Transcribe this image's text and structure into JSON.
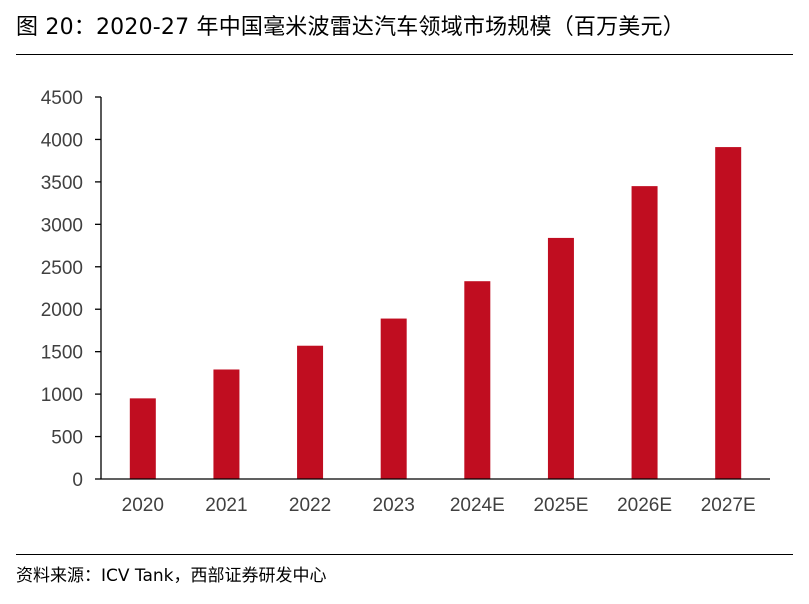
{
  "header": {
    "title": "图 20：2020-27 年中国毫米波雷达汽车领域市场规模（百万美元）"
  },
  "footer": {
    "source": "资料来源：ICV Tank，西部证券研发中心"
  },
  "colors": {
    "bar": "#C00D20",
    "axis": "#000000",
    "tick_text": "#404040"
  },
  "chart_data": {
    "type": "bar",
    "title": "",
    "xlabel": "",
    "ylabel": "",
    "categories": [
      "2020",
      "2021",
      "2022",
      "2023",
      "2024E",
      "2025E",
      "2026E",
      "2027E"
    ],
    "values": [
      950,
      1290,
      1570,
      1890,
      2330,
      2840,
      3450,
      3910
    ],
    "ylim": [
      0,
      4500
    ],
    "yticks": [
      0,
      500,
      1000,
      1500,
      2000,
      2500,
      3000,
      3500,
      4000,
      4500
    ],
    "grid": false,
    "legend": "none"
  }
}
